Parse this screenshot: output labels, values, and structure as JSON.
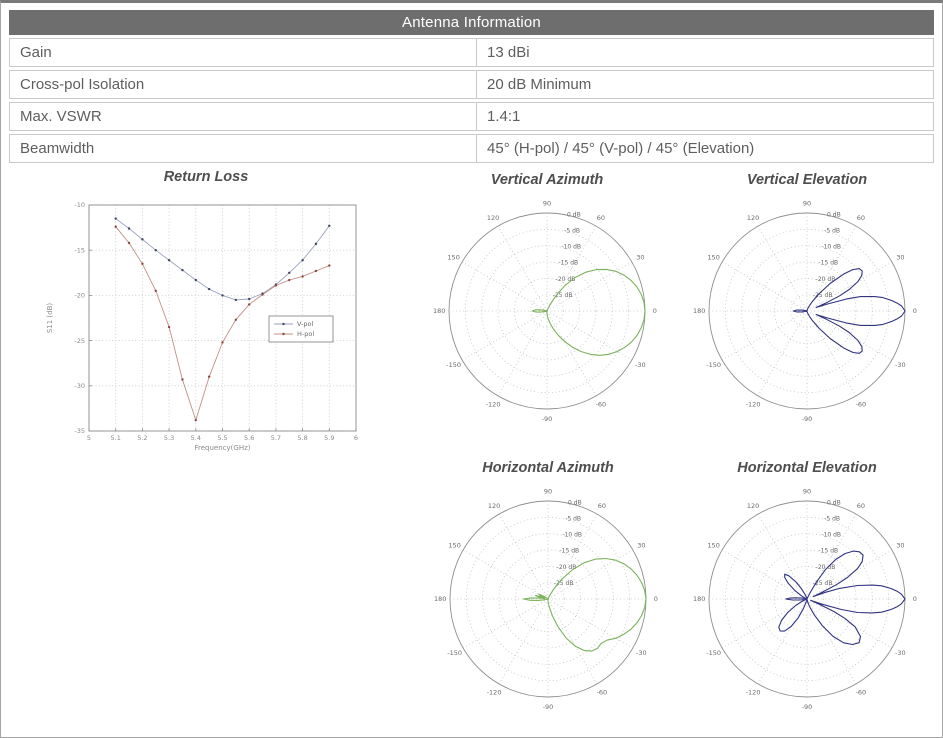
{
  "table": {
    "title": "Antenna Information",
    "header_bg": "#6e6e6e",
    "header_text_color": "#ffffff",
    "border_color": "#c9c9c9",
    "text_color": "#5e5e5e",
    "rows": [
      {
        "label": "Gain",
        "value": "13 dBi"
      },
      {
        "label": "Cross-pol Isolation",
        "value": "20 dB Minimum"
      },
      {
        "label": "Max. VSWR",
        "value": "1.4:1"
      },
      {
        "label": "Beamwidth",
        "value": "45° (H-pol) / 45° (V-pol) / 45° (Elevation)"
      }
    ]
  },
  "chart_data": [
    {
      "type": "line",
      "title": "Return Loss",
      "xlabel": "Frequency(GHz)",
      "ylabel": "S11 (dB)",
      "xlim": [
        5,
        6
      ],
      "ylim": [
        -35,
        -10
      ],
      "xticks": [
        5,
        5.1,
        5.2,
        5.3,
        5.4,
        5.5,
        5.6,
        5.7,
        5.8,
        5.9,
        6
      ],
      "xtick_labels": [
        "5",
        "5.1",
        "5.2",
        "5.3",
        "5.4",
        "5.5",
        "5.6",
        "5.7",
        "5.8",
        "5.9",
        "6"
      ],
      "yticks": [
        -10,
        -15,
        -20,
        -25,
        -30,
        -35
      ],
      "grid": true,
      "legend_position": "middle-right",
      "series": [
        {
          "name": "V-pol",
          "line_color": "#9aa3c0",
          "marker_color": "#3e4560",
          "x": [
            5.1,
            5.15,
            5.2,
            5.25,
            5.3,
            5.35,
            5.4,
            5.45,
            5.5,
            5.55,
            5.6,
            5.65,
            5.7,
            5.75,
            5.8,
            5.85,
            5.9
          ],
          "y": [
            -11.5,
            -12.6,
            -13.8,
            -15.0,
            -16.1,
            -17.2,
            -18.3,
            -19.3,
            -20.0,
            -20.5,
            -20.4,
            -19.8,
            -18.8,
            -17.5,
            -16.1,
            -14.3,
            -12.3
          ]
        },
        {
          "name": "H-pol",
          "line_color": "#c08f85",
          "marker_color": "#8f463d",
          "x": [
            5.1,
            5.15,
            5.2,
            5.25,
            5.3,
            5.35,
            5.4,
            5.45,
            5.5,
            5.55,
            5.6,
            5.65,
            5.7,
            5.75,
            5.8,
            5.85,
            5.9
          ],
          "y": [
            -12.4,
            -14.2,
            -16.5,
            -19.5,
            -23.5,
            -29.3,
            -33.8,
            -29.0,
            -25.2,
            -22.7,
            -21.0,
            -19.9,
            -18.9,
            -18.3,
            -17.9,
            -17.3,
            -16.7
          ]
        }
      ]
    },
    {
      "type": "polar",
      "title": "Vertical Azimuth",
      "color": "#7cb25c",
      "r_min_db": -30,
      "rtick_dbs": [
        0,
        -5,
        -10,
        -15,
        -20,
        -25
      ],
      "rtick_labels": [
        "0 dB",
        "-5 dB",
        "-10 dB",
        "-15 dB",
        "-20 dB",
        "-25 dB"
      ],
      "angle_labels": [
        0,
        30,
        60,
        90,
        120,
        150,
        180,
        -150,
        -120,
        -90,
        -60,
        -30
      ],
      "points": [
        [
          -180,
          -25.5
        ],
        [
          -175,
          -26.5
        ],
        [
          -170,
          -28
        ],
        [
          -165,
          -29.5
        ],
        [
          -160,
          -29.8
        ],
        [
          -150,
          -29.8
        ],
        [
          -140,
          -29.8
        ],
        [
          -130,
          -29.8
        ],
        [
          -120,
          -29.8
        ],
        [
          -110,
          -29.8
        ],
        [
          -100,
          -29.8
        ],
        [
          -95,
          -29.8
        ],
        [
          -90,
          -29.3
        ],
        [
          -85,
          -28.5
        ],
        [
          -80,
          -27.3
        ],
        [
          -75,
          -25.8
        ],
        [
          -70,
          -24
        ],
        [
          -65,
          -21.8
        ],
        [
          -60,
          -19.3
        ],
        [
          -55,
          -16.5
        ],
        [
          -50,
          -13.8
        ],
        [
          -45,
          -11.2
        ],
        [
          -40,
          -8.9
        ],
        [
          -35,
          -6.9
        ],
        [
          -30,
          -5.2
        ],
        [
          -25,
          -3.7
        ],
        [
          -20,
          -2.4
        ],
        [
          -15,
          -1.4
        ],
        [
          -10,
          -0.7
        ],
        [
          -5,
          -0.2
        ],
        [
          0,
          0
        ],
        [
          5,
          -0.2
        ],
        [
          10,
          -0.7
        ],
        [
          15,
          -1.5
        ],
        [
          20,
          -2.6
        ],
        [
          25,
          -4
        ],
        [
          30,
          -5.7
        ],
        [
          35,
          -7.8
        ],
        [
          40,
          -10.3
        ],
        [
          45,
          -13.2
        ],
        [
          50,
          -16.6
        ],
        [
          55,
          -20.6
        ],
        [
          60,
          -24.8
        ],
        [
          65,
          -28
        ],
        [
          70,
          -29.6
        ],
        [
          75,
          -29.8
        ],
        [
          90,
          -29.8
        ],
        [
          110,
          -29.8
        ],
        [
          130,
          -29.8
        ],
        [
          150,
          -29.8
        ],
        [
          160,
          -29.8
        ],
        [
          165,
          -29
        ],
        [
          170,
          -27.8
        ],
        [
          175,
          -26.3
        ],
        [
          180,
          -25.5
        ]
      ]
    },
    {
      "type": "polar",
      "title": "Vertical Elevation",
      "color": "#30337f",
      "r_min_db": -30,
      "rtick_dbs": [
        0,
        -5,
        -10,
        -15,
        -20,
        -25
      ],
      "rtick_labels": [
        "0 dB",
        "-5 dB",
        "-10 dB",
        "-15 dB",
        "-20 dB",
        "-25 dB"
      ],
      "angle_labels": [
        0,
        30,
        60,
        90,
        120,
        150,
        180,
        -150,
        -120,
        -90,
        -60,
        -30
      ],
      "points": [
        [
          -180,
          -25.8
        ],
        [
          -175,
          -26.8
        ],
        [
          -170,
          -28.5
        ],
        [
          -165,
          -29.6
        ],
        [
          -155,
          -29.8
        ],
        [
          -140,
          -29.8
        ],
        [
          -120,
          -29.8
        ],
        [
          -100,
          -29.8
        ],
        [
          -85,
          -29.8
        ],
        [
          -75,
          -29.5
        ],
        [
          -70,
          -29
        ],
        [
          -65,
          -28
        ],
        [
          -60,
          -26.5
        ],
        [
          -55,
          -23.5
        ],
        [
          -50,
          -19
        ],
        [
          -45,
          -13.8
        ],
        [
          -42,
          -11
        ],
        [
          -39,
          -9.4
        ],
        [
          -36,
          -9.1
        ],
        [
          -33,
          -10
        ],
        [
          -30,
          -12
        ],
        [
          -27,
          -15.5
        ],
        [
          -25,
          -19
        ],
        [
          -23,
          -23.5
        ],
        [
          -21,
          -27
        ],
        [
          -19,
          -23.5
        ],
        [
          -17,
          -17.5
        ],
        [
          -15,
          -13
        ],
        [
          -12,
          -8.8
        ],
        [
          -10,
          -6.4
        ],
        [
          -7,
          -3.8
        ],
        [
          -5,
          -2.3
        ],
        [
          -3,
          -1
        ],
        [
          0,
          0
        ],
        [
          3,
          -1
        ],
        [
          5,
          -2.3
        ],
        [
          7,
          -3.8
        ],
        [
          10,
          -6.4
        ],
        [
          12,
          -8.8
        ],
        [
          15,
          -13
        ],
        [
          17,
          -17.5
        ],
        [
          19,
          -23.5
        ],
        [
          21,
          -27
        ],
        [
          23,
          -23.5
        ],
        [
          25,
          -19
        ],
        [
          27,
          -15.5
        ],
        [
          30,
          -12
        ],
        [
          33,
          -10
        ],
        [
          36,
          -9.1
        ],
        [
          39,
          -9.4
        ],
        [
          42,
          -11
        ],
        [
          45,
          -13.8
        ],
        [
          50,
          -19
        ],
        [
          55,
          -23.5
        ],
        [
          60,
          -26.5
        ],
        [
          65,
          -28
        ],
        [
          70,
          -29
        ],
        [
          75,
          -29.5
        ],
        [
          85,
          -29.8
        ],
        [
          100,
          -29.8
        ],
        [
          120,
          -29.8
        ],
        [
          140,
          -29.8
        ],
        [
          155,
          -29.8
        ],
        [
          165,
          -29.6
        ],
        [
          170,
          -28.5
        ],
        [
          175,
          -26.8
        ],
        [
          180,
          -25.8
        ]
      ]
    },
    {
      "type": "polar",
      "title": "Horizontal Azimuth",
      "color": "#7cb25c",
      "r_min_db": -30,
      "rtick_dbs": [
        0,
        -5,
        -10,
        -15,
        -20,
        -25
      ],
      "rtick_labels": [
        "0 dB",
        "-5 dB",
        "-10 dB",
        "-15 dB",
        "-20 dB",
        "-25 dB"
      ],
      "angle_labels": [
        0,
        30,
        60,
        90,
        120,
        150,
        180,
        -150,
        -120,
        -90,
        -60,
        -30
      ],
      "points": [
        [
          -180,
          -22.5
        ],
        [
          -176,
          -24.5
        ],
        [
          -172,
          -27
        ],
        [
          -168,
          -28.8
        ],
        [
          -163,
          -29.8
        ],
        [
          -150,
          -29.8
        ],
        [
          -130,
          -29.8
        ],
        [
          -110,
          -29.8
        ],
        [
          -95,
          -29.8
        ],
        [
          -90,
          -29.5
        ],
        [
          -85,
          -28.8
        ],
        [
          -80,
          -27.2
        ],
        [
          -75,
          -24.5
        ],
        [
          -70,
          -20.8
        ],
        [
          -65,
          -16.8
        ],
        [
          -60,
          -13.3
        ],
        [
          -55,
          -10.8
        ],
        [
          -50,
          -9.2
        ],
        [
          -45,
          -8.6
        ],
        [
          -40,
          -8.8
        ],
        [
          -35,
          -8
        ],
        [
          -30,
          -6
        ],
        [
          -25,
          -4.4
        ],
        [
          -20,
          -3
        ],
        [
          -15,
          -1.8
        ],
        [
          -10,
          -0.9
        ],
        [
          -5,
          -0.3
        ],
        [
          0,
          0
        ],
        [
          5,
          -0.3
        ],
        [
          10,
          -0.9
        ],
        [
          15,
          -1.8
        ],
        [
          20,
          -3
        ],
        [
          25,
          -4.4
        ],
        [
          30,
          -6.2
        ],
        [
          35,
          -8.4
        ],
        [
          40,
          -11
        ],
        [
          45,
          -14.3
        ],
        [
          50,
          -18.2
        ],
        [
          55,
          -22.5
        ],
        [
          60,
          -26.5
        ],
        [
          65,
          -29
        ],
        [
          70,
          -29.8
        ],
        [
          85,
          -29.8
        ],
        [
          100,
          -29.8
        ],
        [
          115,
          -29.8
        ],
        [
          130,
          -29.8
        ],
        [
          140,
          -29.6
        ],
        [
          145,
          -29
        ],
        [
          150,
          -27.8
        ],
        [
          153,
          -26.8
        ],
        [
          156,
          -27.6
        ],
        [
          159,
          -29
        ],
        [
          162,
          -27.8
        ],
        [
          165,
          -26
        ],
        [
          168,
          -27.5
        ],
        [
          171,
          -29
        ],
        [
          174,
          -27
        ],
        [
          177,
          -24.5
        ],
        [
          180,
          -22.5
        ]
      ]
    },
    {
      "type": "polar",
      "title": "Horizontal Elevation",
      "color": "#30337f",
      "r_min_db": -30,
      "rtick_dbs": [
        0,
        -5,
        -10,
        -15,
        -20,
        -25
      ],
      "rtick_labels": [
        "0 dB",
        "-5 dB",
        "-10 dB",
        "-15 dB",
        "-20 dB",
        "-25 dB"
      ],
      "angle_labels": [
        0,
        30,
        60,
        90,
        120,
        150,
        180,
        -150,
        -120,
        -90,
        -60,
        -30
      ],
      "points": [
        [
          -180,
          -23.5
        ],
        [
          -176,
          -25.5
        ],
        [
          -172,
          -27.8
        ],
        [
          -168,
          -29.3
        ],
        [
          -162,
          -29.8
        ],
        [
          -158,
          -29.3
        ],
        [
          -154,
          -28
        ],
        [
          -150,
          -26
        ],
        [
          -145,
          -22.8
        ],
        [
          -140,
          -19.8
        ],
        [
          -135,
          -17.8
        ],
        [
          -130,
          -17.2
        ],
        [
          -125,
          -18
        ],
        [
          -120,
          -20.3
        ],
        [
          -115,
          -23.5
        ],
        [
          -110,
          -27
        ],
        [
          -106,
          -29
        ],
        [
          -102,
          -29.8
        ],
        [
          -95,
          -29.8
        ],
        [
          -90,
          -29.8
        ],
        [
          -85,
          -29.8
        ],
        [
          -80,
          -29.5
        ],
        [
          -75,
          -28.5
        ],
        [
          -70,
          -27
        ],
        [
          -65,
          -24.5
        ],
        [
          -60,
          -20.5
        ],
        [
          -55,
          -16
        ],
        [
          -50,
          -12.5
        ],
        [
          -45,
          -10.3
        ],
        [
          -40,
          -9.2
        ],
        [
          -35,
          -10
        ],
        [
          -30,
          -13
        ],
        [
          -27,
          -17
        ],
        [
          -25,
          -21
        ],
        [
          -23,
          -26
        ],
        [
          -21,
          -28.8
        ],
        [
          -19,
          -25
        ],
        [
          -17,
          -19
        ],
        [
          -15,
          -14
        ],
        [
          -12,
          -9.5
        ],
        [
          -10,
          -6.8
        ],
        [
          -7,
          -4
        ],
        [
          -5,
          -2.4
        ],
        [
          -3,
          -1.1
        ],
        [
          0,
          0
        ],
        [
          3,
          -1.1
        ],
        [
          5,
          -2.4
        ],
        [
          7,
          -4
        ],
        [
          10,
          -6.8
        ],
        [
          12,
          -9.5
        ],
        [
          15,
          -14
        ],
        [
          18,
          -19.5
        ],
        [
          20,
          -24
        ],
        [
          22,
          -28
        ],
        [
          24,
          -25
        ],
        [
          26,
          -20
        ],
        [
          28,
          -16
        ],
        [
          31,
          -12
        ],
        [
          34,
          -9.6
        ],
        [
          38,
          -8.2
        ],
        [
          42,
          -8.4
        ],
        [
          46,
          -9.6
        ],
        [
          50,
          -11.8
        ],
        [
          54,
          -15
        ],
        [
          58,
          -19.5
        ],
        [
          61,
          -24
        ],
        [
          64,
          -27.8
        ],
        [
          67,
          -29.5
        ],
        [
          72,
          -29.8
        ],
        [
          80,
          -29.8
        ],
        [
          90,
          -29.8
        ],
        [
          100,
          -29.8
        ],
        [
          108,
          -29.5
        ],
        [
          113,
          -28.5
        ],
        [
          118,
          -26.5
        ],
        [
          123,
          -23.8
        ],
        [
          128,
          -21
        ],
        [
          132,
          -19.8
        ],
        [
          136,
          -20.5
        ],
        [
          140,
          -22.5
        ],
        [
          145,
          -25.5
        ],
        [
          150,
          -28
        ],
        [
          155,
          -29.5
        ],
        [
          160,
          -29.8
        ],
        [
          166,
          -29.5
        ],
        [
          170,
          -28.5
        ],
        [
          174,
          -26.5
        ],
        [
          177,
          -24.8
        ],
        [
          180,
          -23.5
        ]
      ]
    }
  ]
}
